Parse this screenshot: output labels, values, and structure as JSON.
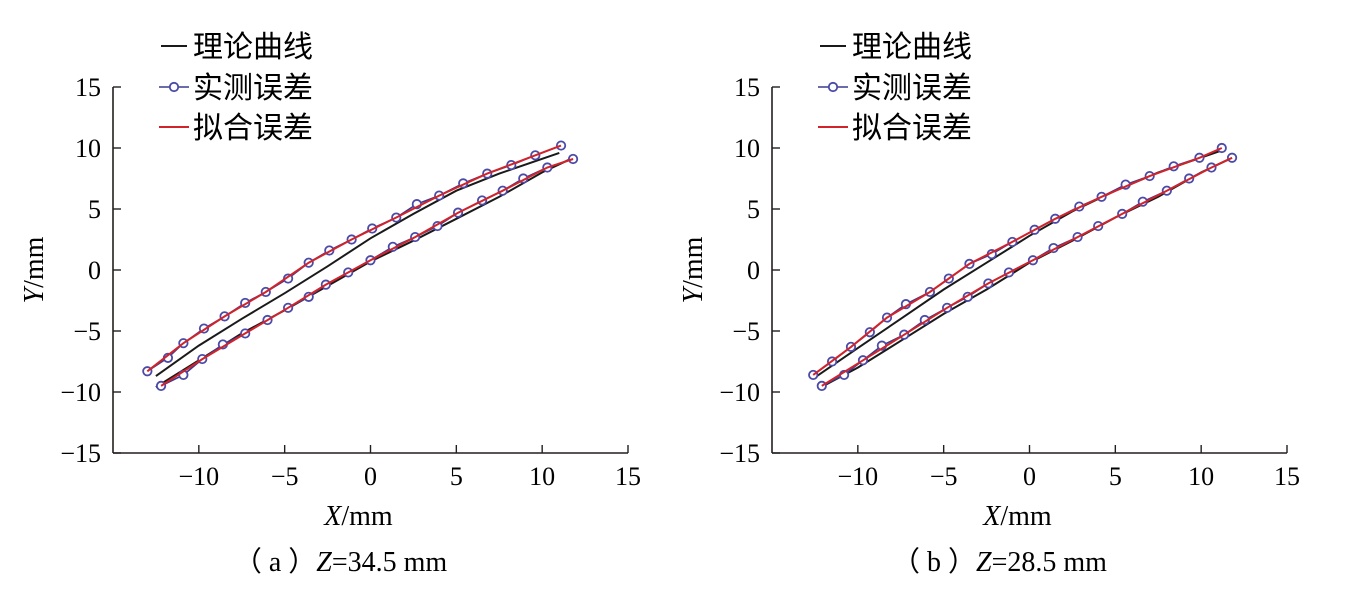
{
  "legend": {
    "theory": "理论曲线",
    "measured": "实测误差",
    "fitted": "拟合误差"
  },
  "colors": {
    "theory": "#1a1a1a",
    "measured_line": "#3b3b8f",
    "measured_marker": "#4a4aa8",
    "fitted": "#d2232a",
    "axis": "#231f20"
  },
  "chart_data": [
    {
      "type": "line",
      "caption_prefix": "（ a ）",
      "caption_var": "Z",
      "caption_value": "=34.5 mm",
      "xlabel_var": "X",
      "xlabel_unit": "/mm",
      "ylabel_var": "Y",
      "ylabel_unit": "/mm",
      "xlim": [
        -15,
        15
      ],
      "ylim": [
        -15,
        15
      ],
      "xticks": [
        -10,
        -5,
        0,
        5,
        10,
        15
      ],
      "yticks": [
        -15,
        -10,
        -5,
        0,
        5,
        10,
        15
      ],
      "xtick_labels": [
        "−10",
        "−5",
        "0",
        "5",
        "10",
        "15"
      ],
      "ytick_labels": [
        "−15",
        "−10",
        "−5",
        "0",
        "5",
        "10",
        "15"
      ],
      "grid": false,
      "legend_position": "top-left",
      "series": [
        {
          "name": "理论曲线",
          "style": "theory",
          "x": [
            -12.5,
            -10,
            -7.5,
            -5,
            -2.5,
            0,
            2.5,
            5,
            7.5,
            11.0
          ],
          "y": [
            -8.7,
            -6.2,
            -4.0,
            -1.9,
            0.3,
            2.6,
            4.6,
            6.5,
            7.9,
            9.6
          ]
        },
        {
          "name": "理论曲线",
          "style": "theory",
          "x": [
            -12.5,
            -10,
            -7.5,
            -5,
            -2.5,
            0,
            2.5,
            5,
            7.5,
            10,
            11.8
          ],
          "y": [
            -9.6,
            -7.4,
            -5.2,
            -3.3,
            -1.3,
            0.7,
            2.4,
            4.2,
            6.0,
            8.0,
            9.2
          ]
        },
        {
          "name": "实测误差",
          "style": "measured",
          "x": [
            -13.0,
            -11.8,
            -10.9,
            -9.7,
            -8.5,
            -7.3,
            -6.1,
            -4.8,
            -3.6,
            -2.4,
            -1.1,
            0.1,
            1.5,
            2.7,
            4.0,
            5.4,
            6.8,
            8.2,
            9.6,
            11.1
          ],
          "y": [
            -8.3,
            -7.2,
            -6.0,
            -4.8,
            -3.8,
            -2.7,
            -1.8,
            -0.7,
            0.6,
            1.6,
            2.5,
            3.4,
            4.3,
            5.4,
            6.1,
            7.1,
            7.9,
            8.6,
            9.4,
            10.2
          ]
        },
        {
          "name": "实测误差",
          "style": "measured",
          "x": [
            -12.2,
            -10.9,
            -9.8,
            -8.6,
            -7.3,
            -6.0,
            -4.8,
            -3.6,
            -2.6,
            -1.3,
            0.0,
            1.3,
            2.6,
            3.9,
            5.1,
            6.5,
            7.7,
            8.9,
            10.3,
            11.8
          ],
          "y": [
            -9.5,
            -8.6,
            -7.3,
            -6.1,
            -5.2,
            -4.1,
            -3.1,
            -2.2,
            -1.2,
            -0.2,
            0.8,
            1.9,
            2.7,
            3.6,
            4.7,
            5.7,
            6.5,
            7.5,
            8.4,
            9.1
          ]
        },
        {
          "name": "拟合误差",
          "style": "fitted",
          "x": [
            -13.0,
            -10.9,
            -8.5,
            -6.1,
            -3.6,
            -1.1,
            1.5,
            4.0,
            6.8,
            9.6,
            11.1
          ],
          "y": [
            -8.3,
            -6.0,
            -3.8,
            -1.8,
            0.6,
            2.5,
            4.3,
            6.1,
            7.9,
            9.4,
            10.2
          ]
        },
        {
          "name": "拟合误差",
          "style": "fitted",
          "x": [
            -12.2,
            -9.8,
            -7.3,
            -4.8,
            -2.6,
            0.0,
            2.6,
            5.1,
            7.7,
            10.3,
            11.8
          ],
          "y": [
            -9.5,
            -7.3,
            -5.2,
            -3.1,
            -1.2,
            0.8,
            2.7,
            4.7,
            6.5,
            8.4,
            9.1
          ]
        }
      ]
    },
    {
      "type": "line",
      "caption_prefix": "（ b ）",
      "caption_var": "Z",
      "caption_value": "=28.5 mm",
      "xlabel_var": "X",
      "xlabel_unit": "/mm",
      "ylabel_var": "Y",
      "ylabel_unit": "/mm",
      "xlim": [
        -15,
        15
      ],
      "ylim": [
        -15,
        15
      ],
      "xticks": [
        -10,
        -5,
        0,
        5,
        10,
        15
      ],
      "yticks": [
        -15,
        -10,
        -5,
        0,
        5,
        10,
        15
      ],
      "xtick_labels": [
        "−10",
        "−5",
        "0",
        "5",
        "10",
        "15"
      ],
      "ytick_labels": [
        "−15",
        "−10",
        "−5",
        "0",
        "5",
        "10",
        "15"
      ],
      "grid": false,
      "legend_position": "top-left",
      "series": [
        {
          "name": "理论曲线",
          "style": "theory",
          "x": [
            -12.5,
            -10,
            -7.5,
            -5,
            -2.5,
            0,
            2.5,
            5,
            7.5,
            11.2
          ],
          "y": [
            -8.8,
            -6.4,
            -4.0,
            -1.6,
            0.6,
            2.8,
            4.8,
            6.5,
            8.0,
            9.8
          ]
        },
        {
          "name": "理论曲线",
          "style": "theory",
          "x": [
            -12.0,
            -10,
            -7.5,
            -5,
            -2.5,
            0,
            2.5,
            5,
            7.5,
            10,
            11.8
          ],
          "y": [
            -9.5,
            -8.0,
            -5.8,
            -3.6,
            -1.6,
            0.6,
            2.4,
            4.3,
            6.0,
            8.0,
            9.2
          ]
        },
        {
          "name": "实测误差",
          "style": "measured",
          "x": [
            -12.6,
            -11.5,
            -10.4,
            -9.3,
            -8.3,
            -7.2,
            -5.8,
            -4.7,
            -3.5,
            -2.2,
            -1.0,
            0.3,
            1.5,
            2.9,
            4.2,
            5.6,
            7.0,
            8.4,
            9.9,
            11.2
          ],
          "y": [
            -8.6,
            -7.5,
            -6.3,
            -5.1,
            -3.9,
            -2.8,
            -1.8,
            -0.7,
            0.5,
            1.3,
            2.3,
            3.3,
            4.2,
            5.2,
            6.0,
            7.0,
            7.7,
            8.5,
            9.2,
            10.0
          ]
        },
        {
          "name": "实测误差",
          "style": "measured",
          "x": [
            -12.1,
            -10.8,
            -9.7,
            -8.6,
            -7.3,
            -6.1,
            -4.8,
            -3.6,
            -2.4,
            -1.2,
            0.2,
            1.4,
            2.8,
            4.0,
            5.4,
            6.6,
            8.0,
            9.3,
            10.6,
            11.8
          ],
          "y": [
            -9.5,
            -8.6,
            -7.4,
            -6.2,
            -5.3,
            -4.1,
            -3.1,
            -2.2,
            -1.1,
            -0.2,
            0.8,
            1.8,
            2.7,
            3.6,
            4.6,
            5.6,
            6.5,
            7.5,
            8.4,
            9.2
          ]
        },
        {
          "name": "拟合误差",
          "style": "fitted",
          "x": [
            -12.6,
            -10.4,
            -8.3,
            -5.8,
            -3.5,
            -1.0,
            1.5,
            4.2,
            7.0,
            9.9,
            11.2
          ],
          "y": [
            -8.6,
            -6.3,
            -3.9,
            -1.8,
            0.5,
            2.3,
            4.2,
            6.0,
            7.7,
            9.2,
            10.0
          ]
        },
        {
          "name": "拟合误差",
          "style": "fitted",
          "x": [
            -12.1,
            -9.7,
            -7.3,
            -4.8,
            -2.4,
            0.2,
            2.8,
            5.4,
            8.0,
            10.6,
            11.8
          ],
          "y": [
            -9.5,
            -7.4,
            -5.3,
            -3.1,
            -1.1,
            0.8,
            2.7,
            4.6,
            6.5,
            8.4,
            9.2
          ]
        }
      ]
    }
  ]
}
